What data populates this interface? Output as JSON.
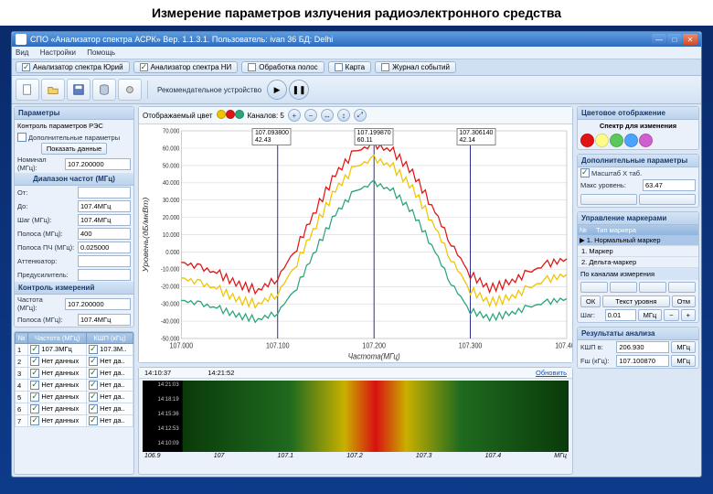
{
  "page_title": "Измерение параметров излучения радиоэлектронного средства",
  "titlebar": "СПО «Анализатор спектра АСРК» Вер. 1.1.3.1. Пользователь: ivan 36 БД: Delhi",
  "menu": {
    "m1": "Вид",
    "m2": "Настройки",
    "m3": "Помощь"
  },
  "tabs": {
    "t1": "Анализатор спектра Юрий",
    "t2": "Анализатор спектра НИ",
    "t3": "Обработка полос",
    "t4": "Карта",
    "t5": "Журнал событий"
  },
  "toolbar": {
    "label": "Рекомендательное устройство"
  },
  "left": {
    "hdr1": "Параметры",
    "sub1": "Контроль параметров РЭС",
    "chk1": "Дополнительные параметры",
    "btn1": "Показать данные",
    "l_freq": "Номинал (МГц):",
    "v_freq": "107.200000",
    "hdr2": "Диапазон частот (МГц)",
    "l_from": "От:",
    "v_from": "",
    "l_to": "До:",
    "v_to": "107.4МГц",
    "l_step": "Шаг (МГц):",
    "v_step": "107.4МГц",
    "l_band": "Полоса (МГц):",
    "v_band": "400",
    "l_rbw": "Полоса ПЧ (МГц):",
    "v_rbw": "0.025000",
    "l_att": "Аттенюатор:",
    "v_att": "",
    "l_amp": "Предусилитель:",
    "v_amp": "",
    "hdr3": "Контроль измерений",
    "l_devF": "Частота (МГц):",
    "v_devF": "107.200000",
    "l_devB": "Полоса (МГц):",
    "v_devB": "107.4МГц",
    "tbl_hdr_n": "№",
    "tbl_hdr_f": "Частота (МГц)",
    "tbl_hdr_k": "КШП (кГц)",
    "rows": [
      [
        "1",
        "107.3МГц",
        "107.3М.."
      ],
      [
        "2",
        "Нет данных",
        "Нет да.."
      ],
      [
        "3",
        "Нет данных",
        "Нет да.."
      ],
      [
        "4",
        "Нет данных",
        "Нет да.."
      ],
      [
        "5",
        "Нет данных",
        "Нет да.."
      ],
      [
        "6",
        "Нет данных",
        "Нет да.."
      ],
      [
        "7",
        "Нет данных",
        "Нет да.."
      ]
    ]
  },
  "chart": {
    "type": "line",
    "hdr_label": "Отображаемый цвет",
    "legend_colors": [
      "#f0c400",
      "#e01414",
      "#2aa578"
    ],
    "extra_label": "Каналов: 5",
    "x_label": "Частота(МГц)",
    "y_label": "Уровень(дБ/мкВт)",
    "xlim": [
      107.0,
      107.4
    ],
    "ylim": [
      -50,
      70
    ],
    "x_ticks": [
      107.0,
      107.1,
      107.2,
      107.3,
      107.4
    ],
    "y_ticks": [
      -50,
      -40,
      -30,
      -20,
      -10,
      0,
      10,
      20,
      30,
      40,
      50,
      60,
      70
    ],
    "y_tick_labels": [
      "-50.000",
      "-40.000",
      "-30.000",
      "-20.000",
      "-10.000",
      "0.000",
      "10.000",
      "20.000",
      "30.000",
      "40.000",
      "50.000",
      "60.000",
      "70.000"
    ],
    "grid_color": "#d8d8d8",
    "grid_color_v": "#c8c8c8",
    "bg": "#ffffff",
    "vlines": [
      107.1,
      107.2,
      107.3
    ],
    "vline_color": "#000080",
    "markers": [
      {
        "f": "107.093800",
        "u": "42.43",
        "x": 107.094
      },
      {
        "f": "107.199870",
        "u": "60.11",
        "x": 107.2
      },
      {
        "f": "107.306140",
        "u": "42.14",
        "x": 107.306
      }
    ],
    "series": [
      {
        "name": "max",
        "color": "#e01414",
        "width": 1.2,
        "x": [
          107.0,
          107.02,
          107.04,
          107.06,
          107.08,
          107.1,
          107.12,
          107.14,
          107.16,
          107.18,
          107.2,
          107.22,
          107.24,
          107.26,
          107.28,
          107.3,
          107.32,
          107.34,
          107.36,
          107.38,
          107.4
        ],
        "y": [
          -6,
          -9,
          -13,
          -19,
          -22,
          -15,
          3,
          25,
          45,
          58,
          62,
          58,
          46,
          27,
          5,
          -13,
          -21,
          -18,
          -12,
          -7,
          -4
        ]
      },
      {
        "name": "avg",
        "color": "#f0c400",
        "width": 1.2,
        "x": [
          107.0,
          107.02,
          107.04,
          107.06,
          107.08,
          107.1,
          107.12,
          107.14,
          107.16,
          107.18,
          107.2,
          107.22,
          107.24,
          107.26,
          107.28,
          107.3,
          107.32,
          107.34,
          107.36,
          107.38,
          107.4
        ],
        "y": [
          -15,
          -18,
          -22,
          -28,
          -30,
          -24,
          -6,
          16,
          36,
          49,
          54,
          49,
          37,
          18,
          -4,
          -22,
          -29,
          -27,
          -21,
          -16,
          -13
        ]
      },
      {
        "name": "min",
        "color": "#2aa578",
        "width": 1.2,
        "x": [
          107.0,
          107.02,
          107.04,
          107.06,
          107.08,
          107.1,
          107.12,
          107.14,
          107.16,
          107.18,
          107.2,
          107.22,
          107.24,
          107.26,
          107.28,
          107.3,
          107.32,
          107.34,
          107.36,
          107.38,
          107.4
        ],
        "y": [
          -28,
          -30,
          -33,
          -37,
          -39,
          -35,
          -20,
          2,
          22,
          35,
          40,
          35,
          23,
          4,
          -18,
          -34,
          -38,
          -36,
          -32,
          -29,
          -27
        ]
      }
    ]
  },
  "spectrogram": {
    "t1": "14:10:37",
    "t2": "14:21:52",
    "refresh": "Обновить",
    "time_ticks": [
      "14:21:03",
      "14:18:19",
      "14:15:36",
      "14:12:53",
      "14:10:09"
    ],
    "x_ticks": [
      "106.9",
      "107",
      "107.1",
      "107.2",
      "107.3",
      "107.4"
    ],
    "x_label": "МГц",
    "grad_stops": [
      {
        "o": 0,
        "c": "#0a3a0a"
      },
      {
        "o": 0.28,
        "c": "#1f6a1f"
      },
      {
        "o": 0.42,
        "c": "#c9b000"
      },
      {
        "o": 0.5,
        "c": "#d81010"
      },
      {
        "o": 0.58,
        "c": "#c9b000"
      },
      {
        "o": 0.72,
        "c": "#1f6a1f"
      },
      {
        "o": 1,
        "c": "#0a3a0a"
      }
    ]
  },
  "right": {
    "hdr1": "Цветовое отображение",
    "sub1": "Спектр для изменения",
    "colors": [
      "#e01414",
      "#fffb8a",
      "#5cc85c",
      "#4aa3ff",
      "#d060d0"
    ],
    "hdr2": "Дополнительные параметры",
    "chk": "Масштаб X таб.",
    "lvl_lbl": "Макс уровень:",
    "lvl_val": "63.47",
    "hdr3": "Управление маркерами",
    "m_hdr_n": "№",
    "m_hdr_t": "Тип маркера",
    "m_items": [
      "1. Нормальный маркер",
      "1. Маркер",
      "2. Дельта-маркер"
    ],
    "pills_hdr": "По каналам измерения",
    "btn_ok": "ОК",
    "btn_lvl": "Текст уровня",
    "btn_canc": "Отм",
    "row_step_lbl": "Шаг:",
    "row_step_val": "0.01",
    "row_step_unit": "МГц",
    "hdr4": "Результаты анализа",
    "res_lbl": "КШП в:",
    "res_val": "206.930",
    "res_unit": "МГц",
    "res2_lbl": "Fш (кГц):",
    "res2_val": "107.100870",
    "res2_unit": "МГц"
  }
}
